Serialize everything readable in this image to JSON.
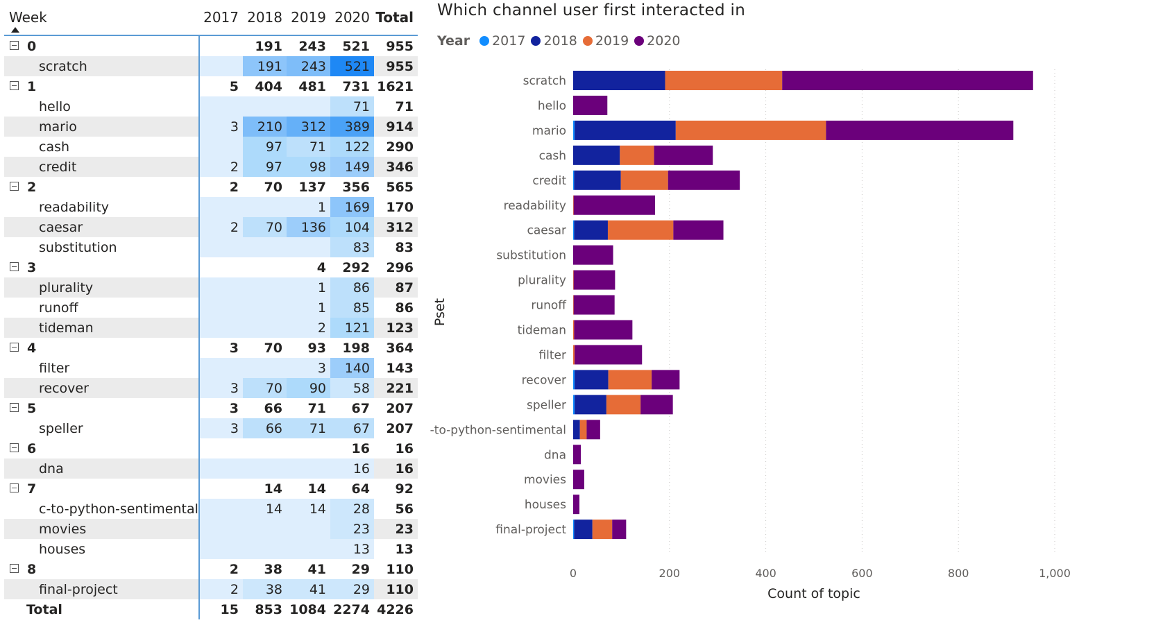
{
  "matrix": {
    "headers": {
      "row": "Week",
      "years": [
        "2017",
        "2018",
        "2019",
        "2020"
      ],
      "total": "Total"
    },
    "rows": [
      {
        "type": "group",
        "label": "0",
        "values": [
          "",
          "191",
          "243",
          "521"
        ],
        "total": "955"
      },
      {
        "type": "child",
        "label": "scratch",
        "values": [
          "",
          "191",
          "243",
          "521"
        ],
        "total": "955"
      },
      {
        "type": "group",
        "label": "1",
        "values": [
          "5",
          "404",
          "481",
          "731"
        ],
        "total": "1621"
      },
      {
        "type": "child",
        "label": "hello",
        "values": [
          "",
          "",
          "",
          "71"
        ],
        "total": "71"
      },
      {
        "type": "child",
        "label": "mario",
        "values": [
          "3",
          "210",
          "312",
          "389"
        ],
        "total": "914"
      },
      {
        "type": "child",
        "label": "cash",
        "values": [
          "",
          "97",
          "71",
          "122"
        ],
        "total": "290"
      },
      {
        "type": "child",
        "label": "credit",
        "values": [
          "2",
          "97",
          "98",
          "149"
        ],
        "total": "346"
      },
      {
        "type": "group",
        "label": "2",
        "values": [
          "2",
          "70",
          "137",
          "356"
        ],
        "total": "565"
      },
      {
        "type": "child",
        "label": "readability",
        "values": [
          "",
          "",
          "1",
          "169"
        ],
        "total": "170"
      },
      {
        "type": "child",
        "label": "caesar",
        "values": [
          "2",
          "70",
          "136",
          "104"
        ],
        "total": "312"
      },
      {
        "type": "child",
        "label": "substitution",
        "values": [
          "",
          "",
          "",
          "83"
        ],
        "total": "83"
      },
      {
        "type": "group",
        "label": "3",
        "values": [
          "",
          "",
          "4",
          "292"
        ],
        "total": "296"
      },
      {
        "type": "child",
        "label": "plurality",
        "values": [
          "",
          "",
          "1",
          "86"
        ],
        "total": "87"
      },
      {
        "type": "child",
        "label": "runoff",
        "values": [
          "",
          "",
          "1",
          "85"
        ],
        "total": "86"
      },
      {
        "type": "child",
        "label": "tideman",
        "values": [
          "",
          "",
          "2",
          "121"
        ],
        "total": "123"
      },
      {
        "type": "group",
        "label": "4",
        "values": [
          "3",
          "70",
          "93",
          "198"
        ],
        "total": "364"
      },
      {
        "type": "child",
        "label": "filter",
        "values": [
          "",
          "",
          "3",
          "140"
        ],
        "total": "143"
      },
      {
        "type": "child",
        "label": "recover",
        "values": [
          "3",
          "70",
          "90",
          "58"
        ],
        "total": "221"
      },
      {
        "type": "group",
        "label": "5",
        "values": [
          "3",
          "66",
          "71",
          "67"
        ],
        "total": "207"
      },
      {
        "type": "child",
        "label": "speller",
        "values": [
          "3",
          "66",
          "71",
          "67"
        ],
        "total": "207"
      },
      {
        "type": "group",
        "label": "6",
        "values": [
          "",
          "",
          "",
          "16"
        ],
        "total": "16"
      },
      {
        "type": "child",
        "label": "dna",
        "values": [
          "",
          "",
          "",
          "16"
        ],
        "total": "16"
      },
      {
        "type": "group",
        "label": "7",
        "values": [
          "",
          "14",
          "14",
          "64"
        ],
        "total": "92"
      },
      {
        "type": "child",
        "label": "c-to-python-sentimental",
        "values": [
          "",
          "14",
          "14",
          "28"
        ],
        "total": "56"
      },
      {
        "type": "child",
        "label": "movies",
        "values": [
          "",
          "",
          "",
          "23"
        ],
        "total": "23"
      },
      {
        "type": "child",
        "label": "houses",
        "values": [
          "",
          "",
          "",
          "13"
        ],
        "total": "13"
      },
      {
        "type": "group",
        "label": "8",
        "values": [
          "2",
          "38",
          "41",
          "29"
        ],
        "total": "110"
      },
      {
        "type": "child",
        "label": "final-project",
        "values": [
          "2",
          "38",
          "41",
          "29"
        ],
        "total": "110"
      }
    ],
    "grand_total": {
      "label": "Total",
      "values": [
        "15",
        "853",
        "1084",
        "2274"
      ],
      "total": "4226"
    },
    "colors": {
      "light": "#deeefd",
      "max": "#1e88f5",
      "shade": "#ebebeb",
      "border": "#5b9bd5"
    }
  },
  "chart_data": {
    "type": "bar",
    "orientation": "horizontal",
    "stacked": true,
    "title": "Which channel user first interacted in",
    "legend_title": "Year",
    "legend_position": "top-left",
    "xlabel": "Count of topic",
    "ylabel": "Pset",
    "xlim": [
      0,
      1000
    ],
    "xticks": [
      "0",
      "200",
      "400",
      "600",
      "800",
      "1,000"
    ],
    "grid": true,
    "categories": [
      "scratch",
      "hello",
      "mario",
      "cash",
      "credit",
      "readability",
      "caesar",
      "substitution",
      "plurality",
      "runoff",
      "tideman",
      "filter",
      "recover",
      "speller",
      "c-to-python-sentimental",
      "dna",
      "movies",
      "houses",
      "final-project"
    ],
    "series": [
      {
        "name": "2017",
        "color": "#118dff",
        "values": [
          0,
          0,
          3,
          0,
          2,
          0,
          2,
          0,
          0,
          0,
          0,
          0,
          3,
          3,
          0,
          0,
          0,
          0,
          2
        ]
      },
      {
        "name": "2018",
        "color": "#12239e",
        "values": [
          191,
          0,
          210,
          97,
          97,
          0,
          70,
          0,
          0,
          0,
          0,
          0,
          70,
          66,
          14,
          0,
          0,
          0,
          38
        ]
      },
      {
        "name": "2019",
        "color": "#e66c37",
        "values": [
          243,
          0,
          312,
          71,
          98,
          1,
          136,
          0,
          1,
          1,
          2,
          3,
          90,
          71,
          14,
          0,
          0,
          0,
          41
        ]
      },
      {
        "name": "2020",
        "color": "#6b007b",
        "values": [
          521,
          71,
          389,
          122,
          149,
          169,
          104,
          83,
          86,
          85,
          121,
          140,
          58,
          67,
          28,
          16,
          23,
          13,
          29
        ]
      }
    ]
  }
}
